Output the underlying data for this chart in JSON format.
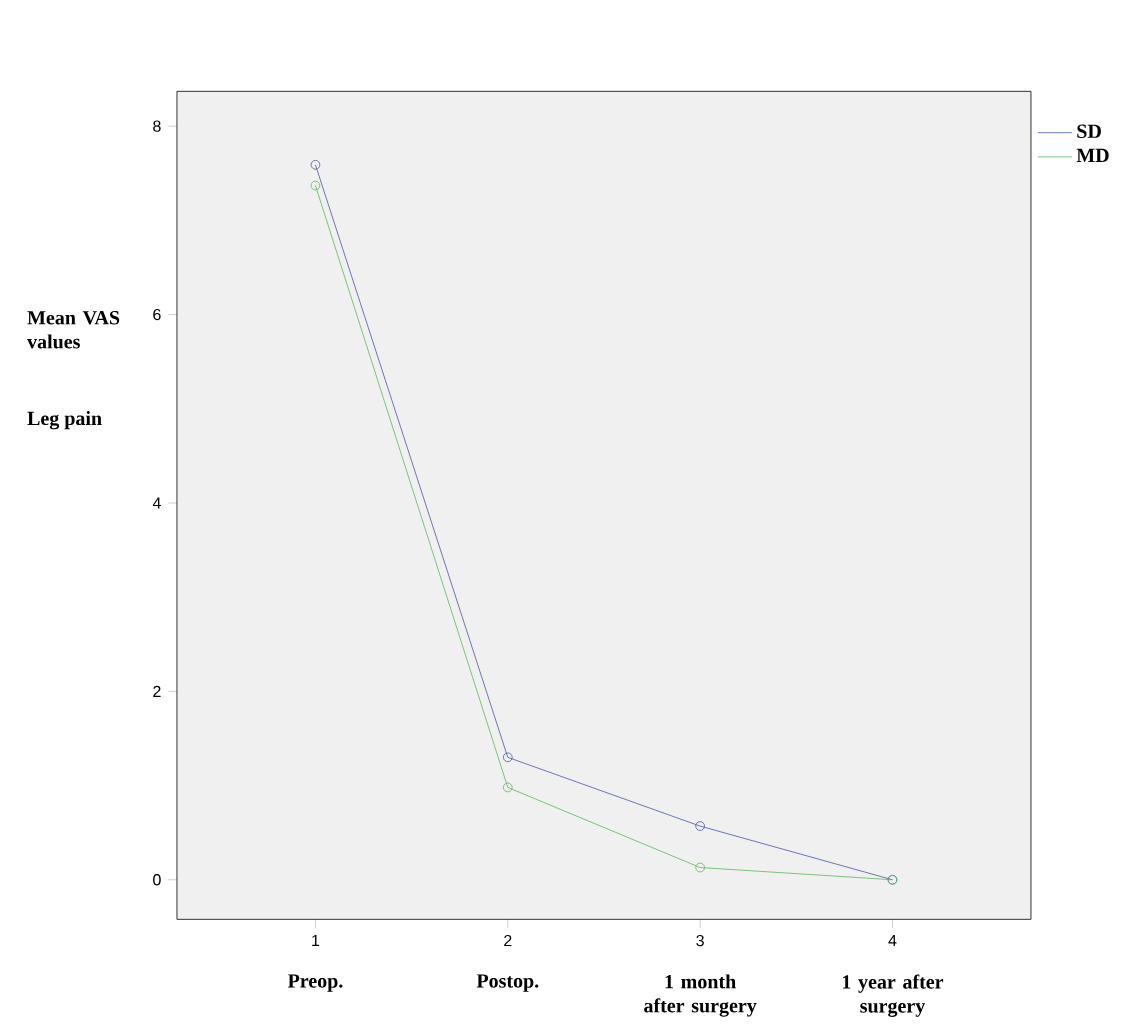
{
  "chart_data": {
    "type": "line",
    "ylabel": "Mean VAS values",
    "x": [
      1,
      2,
      3,
      4
    ],
    "xlim": [
      0.28,
      4.72
    ],
    "xticks": [
      1,
      2,
      3,
      4
    ],
    "ylim": [
      -0.42,
      8.37
    ],
    "yticks": [
      0,
      2,
      4,
      6,
      8
    ],
    "series": [
      {
        "name": "SD",
        "color": "#4a57a6",
        "values": [
          7.59,
          1.3,
          0.57,
          0
        ]
      },
      {
        "name": "MD",
        "color": "#5cb85c",
        "values": [
          7.37,
          0.98,
          0.13,
          0
        ]
      }
    ],
    "marker": "circle",
    "legend": "top right",
    "grid": false,
    "annotations": [
      "Leg pain",
      "Preop.",
      "Postop.",
      "1 month after surgery",
      "1 year after surgery"
    ]
  }
}
